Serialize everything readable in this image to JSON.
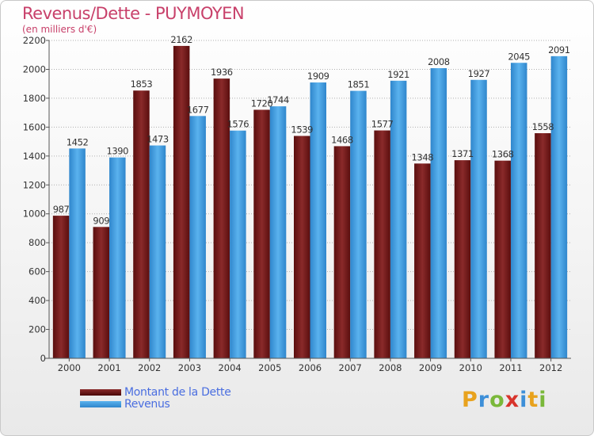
{
  "header": {
    "title": "Revenus/Dette - PUYMOYEN",
    "subtitle": "(en milliers d'€)"
  },
  "colors": {
    "dette": "#6e1a1a",
    "revenus": "#3d9ee0",
    "grid": "#b0b0b0",
    "axis_text": "#333333"
  },
  "chart_data": {
    "type": "bar",
    "categories": [
      "2000",
      "2001",
      "2002",
      "2003",
      "2004",
      "2005",
      "2006",
      "2007",
      "2008",
      "2009",
      "2010",
      "2011",
      "2012"
    ],
    "series": [
      {
        "name": "Montant de la Dette",
        "values": [
          987,
          909,
          1853,
          2162,
          1936,
          1720,
          1539,
          1468,
          1577,
          1348,
          1371,
          1368,
          1558
        ]
      },
      {
        "name": "Revenus",
        "values": [
          1452,
          1390,
          1473,
          1677,
          1576,
          1744,
          1909,
          1851,
          1921,
          2008,
          1927,
          2045,
          2091
        ]
      }
    ],
    "ylim": [
      0,
      2200
    ],
    "yticks": [
      0,
      200,
      400,
      600,
      800,
      1000,
      1200,
      1400,
      1600,
      1800,
      2000,
      2200
    ],
    "grid": true,
    "legend_position": "bottom-left"
  },
  "legend": {
    "dette_label": "Montant de la Dette",
    "revenus_label": "Revenus"
  },
  "logo": {
    "text": "Proxiti",
    "letter_colors": [
      "#e8a21d",
      "#3d8fd8",
      "#7ab83a",
      "#d8342c",
      "#3d8fd8",
      "#e8a21d",
      "#7ab83a"
    ]
  }
}
